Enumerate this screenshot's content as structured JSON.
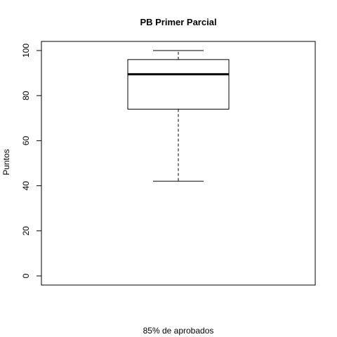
{
  "chart_data": {
    "type": "boxplot",
    "title": "PB Primer Parcial",
    "xlabel": "85% de aprobados",
    "ylabel": "Puntos",
    "ylim": [
      0,
      100
    ],
    "yticks": [
      0,
      20,
      40,
      60,
      80,
      100
    ],
    "grid": false,
    "box": {
      "whisker_low": 42,
      "q1": 74,
      "median": 89.5,
      "q3": 96,
      "whisker_high": 100
    },
    "colors": {
      "line": "#000000",
      "background": "#ffffff"
    }
  }
}
